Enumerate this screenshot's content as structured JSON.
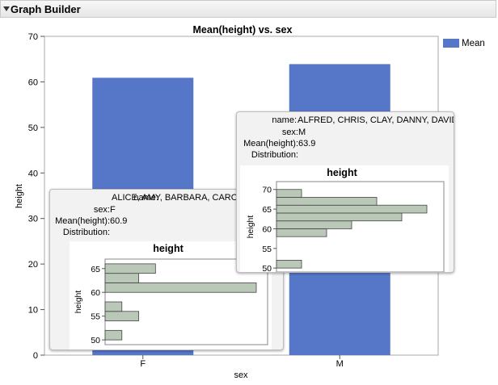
{
  "window": {
    "title": "Graph Builder"
  },
  "colors": {
    "bar": "#5677C8",
    "hist": "#B9C8B7",
    "accent": "#5677C8"
  },
  "chart_data": {
    "type": "bar",
    "title": "Mean(height) vs. sex",
    "xlabel": "sex",
    "ylabel": "height",
    "categories": [
      "F",
      "M"
    ],
    "series": [
      {
        "name": "Mean",
        "values": [
          60.9,
          63.9
        ]
      }
    ],
    "ylim": [
      0,
      70
    ],
    "yticks": [
      0,
      10,
      20,
      30,
      40,
      50,
      60,
      70
    ],
    "grid": false,
    "legend": "top-right"
  },
  "tooltips": [
    {
      "name_label": "name:",
      "name_value": "ALICE, AMY, BARBARA, CAROL, E",
      "sex_label": "sex:",
      "sex_value": "F",
      "mean_label": "Mean(height):",
      "mean_value": "60.9",
      "dist_label": "Distribution:",
      "hist": {
        "title": "height",
        "axis_label": "height",
        "ticks": [
          50,
          55,
          60,
          65
        ],
        "bins": [
          {
            "range": [
              50,
              52
            ],
            "count": 1
          },
          {
            "range": [
              54,
              56
            ],
            "count": 2
          },
          {
            "range": [
              56,
              58
            ],
            "count": 1
          },
          {
            "range": [
              60,
              62
            ],
            "count": 9
          },
          {
            "range": [
              62,
              64
            ],
            "count": 2
          },
          {
            "range": [
              64,
              66
            ],
            "count": 3
          }
        ]
      }
    },
    {
      "name_label": "name:",
      "name_value": "ALFRED, CHRIS, CLAY, DANNY, DAVID, ...",
      "sex_label": "sex:",
      "sex_value": "M",
      "mean_label": "Mean(height):",
      "mean_value": "63.9",
      "dist_label": "Distribution:",
      "hist": {
        "title": "height",
        "axis_label": "height",
        "ticks": [
          50,
          55,
          60,
          65,
          70
        ],
        "bins": [
          {
            "range": [
              50,
              52
            ],
            "count": 1
          },
          {
            "range": [
              58,
              60
            ],
            "count": 2
          },
          {
            "range": [
              60,
              62
            ],
            "count": 3
          },
          {
            "range": [
              62,
              64
            ],
            "count": 5
          },
          {
            "range": [
              64,
              66
            ],
            "count": 6
          },
          {
            "range": [
              66,
              68
            ],
            "count": 4
          },
          {
            "range": [
              68,
              70
            ],
            "count": 1
          }
        ]
      }
    }
  ]
}
